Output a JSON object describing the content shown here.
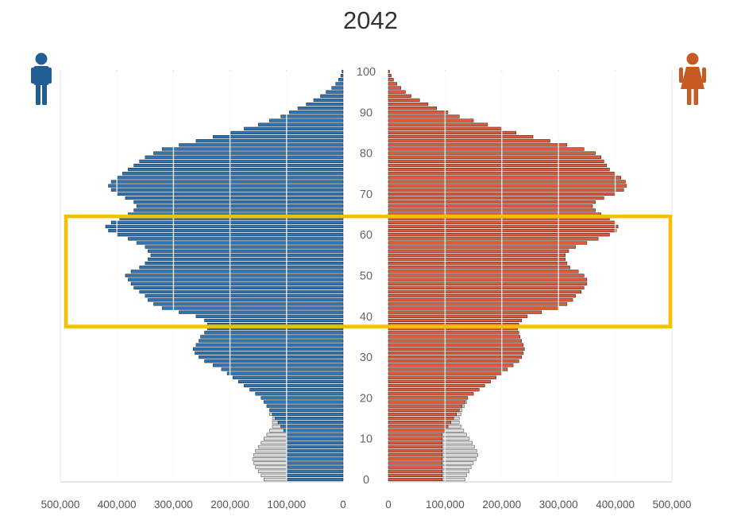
{
  "chart_data": {
    "type": "bar",
    "subtype": "population-pyramid",
    "title": "2042",
    "age_ticks": [
      0,
      10,
      20,
      30,
      40,
      50,
      60,
      70,
      80,
      90,
      100
    ],
    "x_ticks_left": [
      "500,000",
      "400,000",
      "300,000",
      "200,000",
      "100,000",
      "0"
    ],
    "x_ticks_right": [
      "0",
      "100,000",
      "200,000",
      "300,000",
      "400,000",
      "500,000"
    ],
    "xlim": [
      0,
      500000
    ],
    "ylim": [
      0,
      100
    ],
    "grid": "vertical lines at 100,000 intervals",
    "categories": [
      0,
      1,
      2,
      3,
      4,
      5,
      6,
      7,
      8,
      9,
      10,
      11,
      12,
      13,
      14,
      15,
      16,
      17,
      18,
      19,
      20,
      21,
      22,
      23,
      24,
      25,
      26,
      27,
      28,
      29,
      30,
      31,
      32,
      33,
      34,
      35,
      36,
      37,
      38,
      39,
      40,
      41,
      42,
      43,
      44,
      45,
      46,
      47,
      48,
      49,
      50,
      51,
      52,
      53,
      54,
      55,
      56,
      57,
      58,
      59,
      60,
      61,
      62,
      63,
      64,
      65,
      66,
      67,
      68,
      69,
      70,
      71,
      72,
      73,
      74,
      75,
      76,
      77,
      78,
      79,
      80,
      81,
      82,
      83,
      84,
      85,
      86,
      87,
      88,
      89,
      90,
      91,
      92,
      93,
      94,
      95,
      96,
      97,
      98,
      99,
      100
    ],
    "series": [
      {
        "side": "left",
        "color": "#2e75b6",
        "values": [
          100000,
          100000,
          100000,
          100000,
          100000,
          100000,
          100000,
          100000,
          100000,
          100000,
          100000,
          100000,
          105000,
          110000,
          115000,
          120000,
          125000,
          130000,
          135000,
          140000,
          145000,
          155000,
          165000,
          175000,
          185000,
          195000,
          205000,
          215000,
          230000,
          245000,
          255000,
          262000,
          265000,
          260000,
          255000,
          252000,
          245000,
          240000,
          240000,
          245000,
          260000,
          290000,
          320000,
          335000,
          345000,
          350000,
          360000,
          370000,
          375000,
          380000,
          385000,
          375000,
          360000,
          350000,
          345000,
          340000,
          345000,
          350000,
          365000,
          380000,
          400000,
          415000,
          420000,
          410000,
          395000,
          380000,
          370000,
          365000,
          370000,
          385000,
          400000,
          410000,
          415000,
          410000,
          400000,
          390000,
          380000,
          370000,
          360000,
          350000,
          335000,
          320000,
          290000,
          260000,
          230000,
          200000,
          175000,
          150000,
          130000,
          110000,
          95000,
          80000,
          65000,
          52000,
          40000,
          30000,
          20000,
          13000,
          8000,
          4000,
          2000
        ],
        "projected_extension": [
          140000,
          145000,
          150000,
          155000,
          158000,
          160000,
          158000,
          155000,
          150000,
          145000,
          140000,
          135000,
          130000,
          125000,
          125000,
          125000,
          130000,
          130000,
          135000,
          140000
        ]
      },
      {
        "side": "right",
        "color": "#e05a3a",
        "values": [
          95000,
          95000,
          95000,
          95000,
          95000,
          95000,
          95000,
          95000,
          95000,
          95000,
          95000,
          95000,
          100000,
          105000,
          110000,
          115000,
          120000,
          125000,
          130000,
          135000,
          140000,
          150000,
          160000,
          170000,
          180000,
          190000,
          200000,
          210000,
          220000,
          230000,
          235000,
          238000,
          240000,
          238000,
          235000,
          232000,
          230000,
          228000,
          230000,
          235000,
          245000,
          270000,
          300000,
          315000,
          325000,
          330000,
          340000,
          345000,
          350000,
          350000,
          345000,
          335000,
          320000,
          315000,
          312000,
          312000,
          318000,
          330000,
          350000,
          370000,
          390000,
          402000,
          405000,
          400000,
          390000,
          375000,
          365000,
          360000,
          365000,
          380000,
          400000,
          415000,
          420000,
          418000,
          410000,
          400000,
          390000,
          385000,
          380000,
          375000,
          365000,
          345000,
          315000,
          285000,
          255000,
          225000,
          200000,
          175000,
          150000,
          125000,
          105000,
          85000,
          70000,
          55000,
          40000,
          30000,
          22000,
          15000,
          9000,
          5000,
          2000
        ],
        "projected_extension": [
          135000,
          138000,
          142000,
          146000,
          150000,
          155000,
          158000,
          156000,
          152000,
          148000,
          143000,
          138000,
          133000,
          128000,
          125000,
          125000,
          128000,
          130000,
          134000,
          138000
        ]
      }
    ],
    "highlight": {
      "from_age": 38,
      "to_age": 64,
      "color": "#f5c000"
    }
  },
  "icons": {
    "male": {
      "name": "male-person-icon",
      "color": "#1f5f95"
    },
    "female": {
      "name": "female-person-icon",
      "color": "#c85a24"
    }
  }
}
